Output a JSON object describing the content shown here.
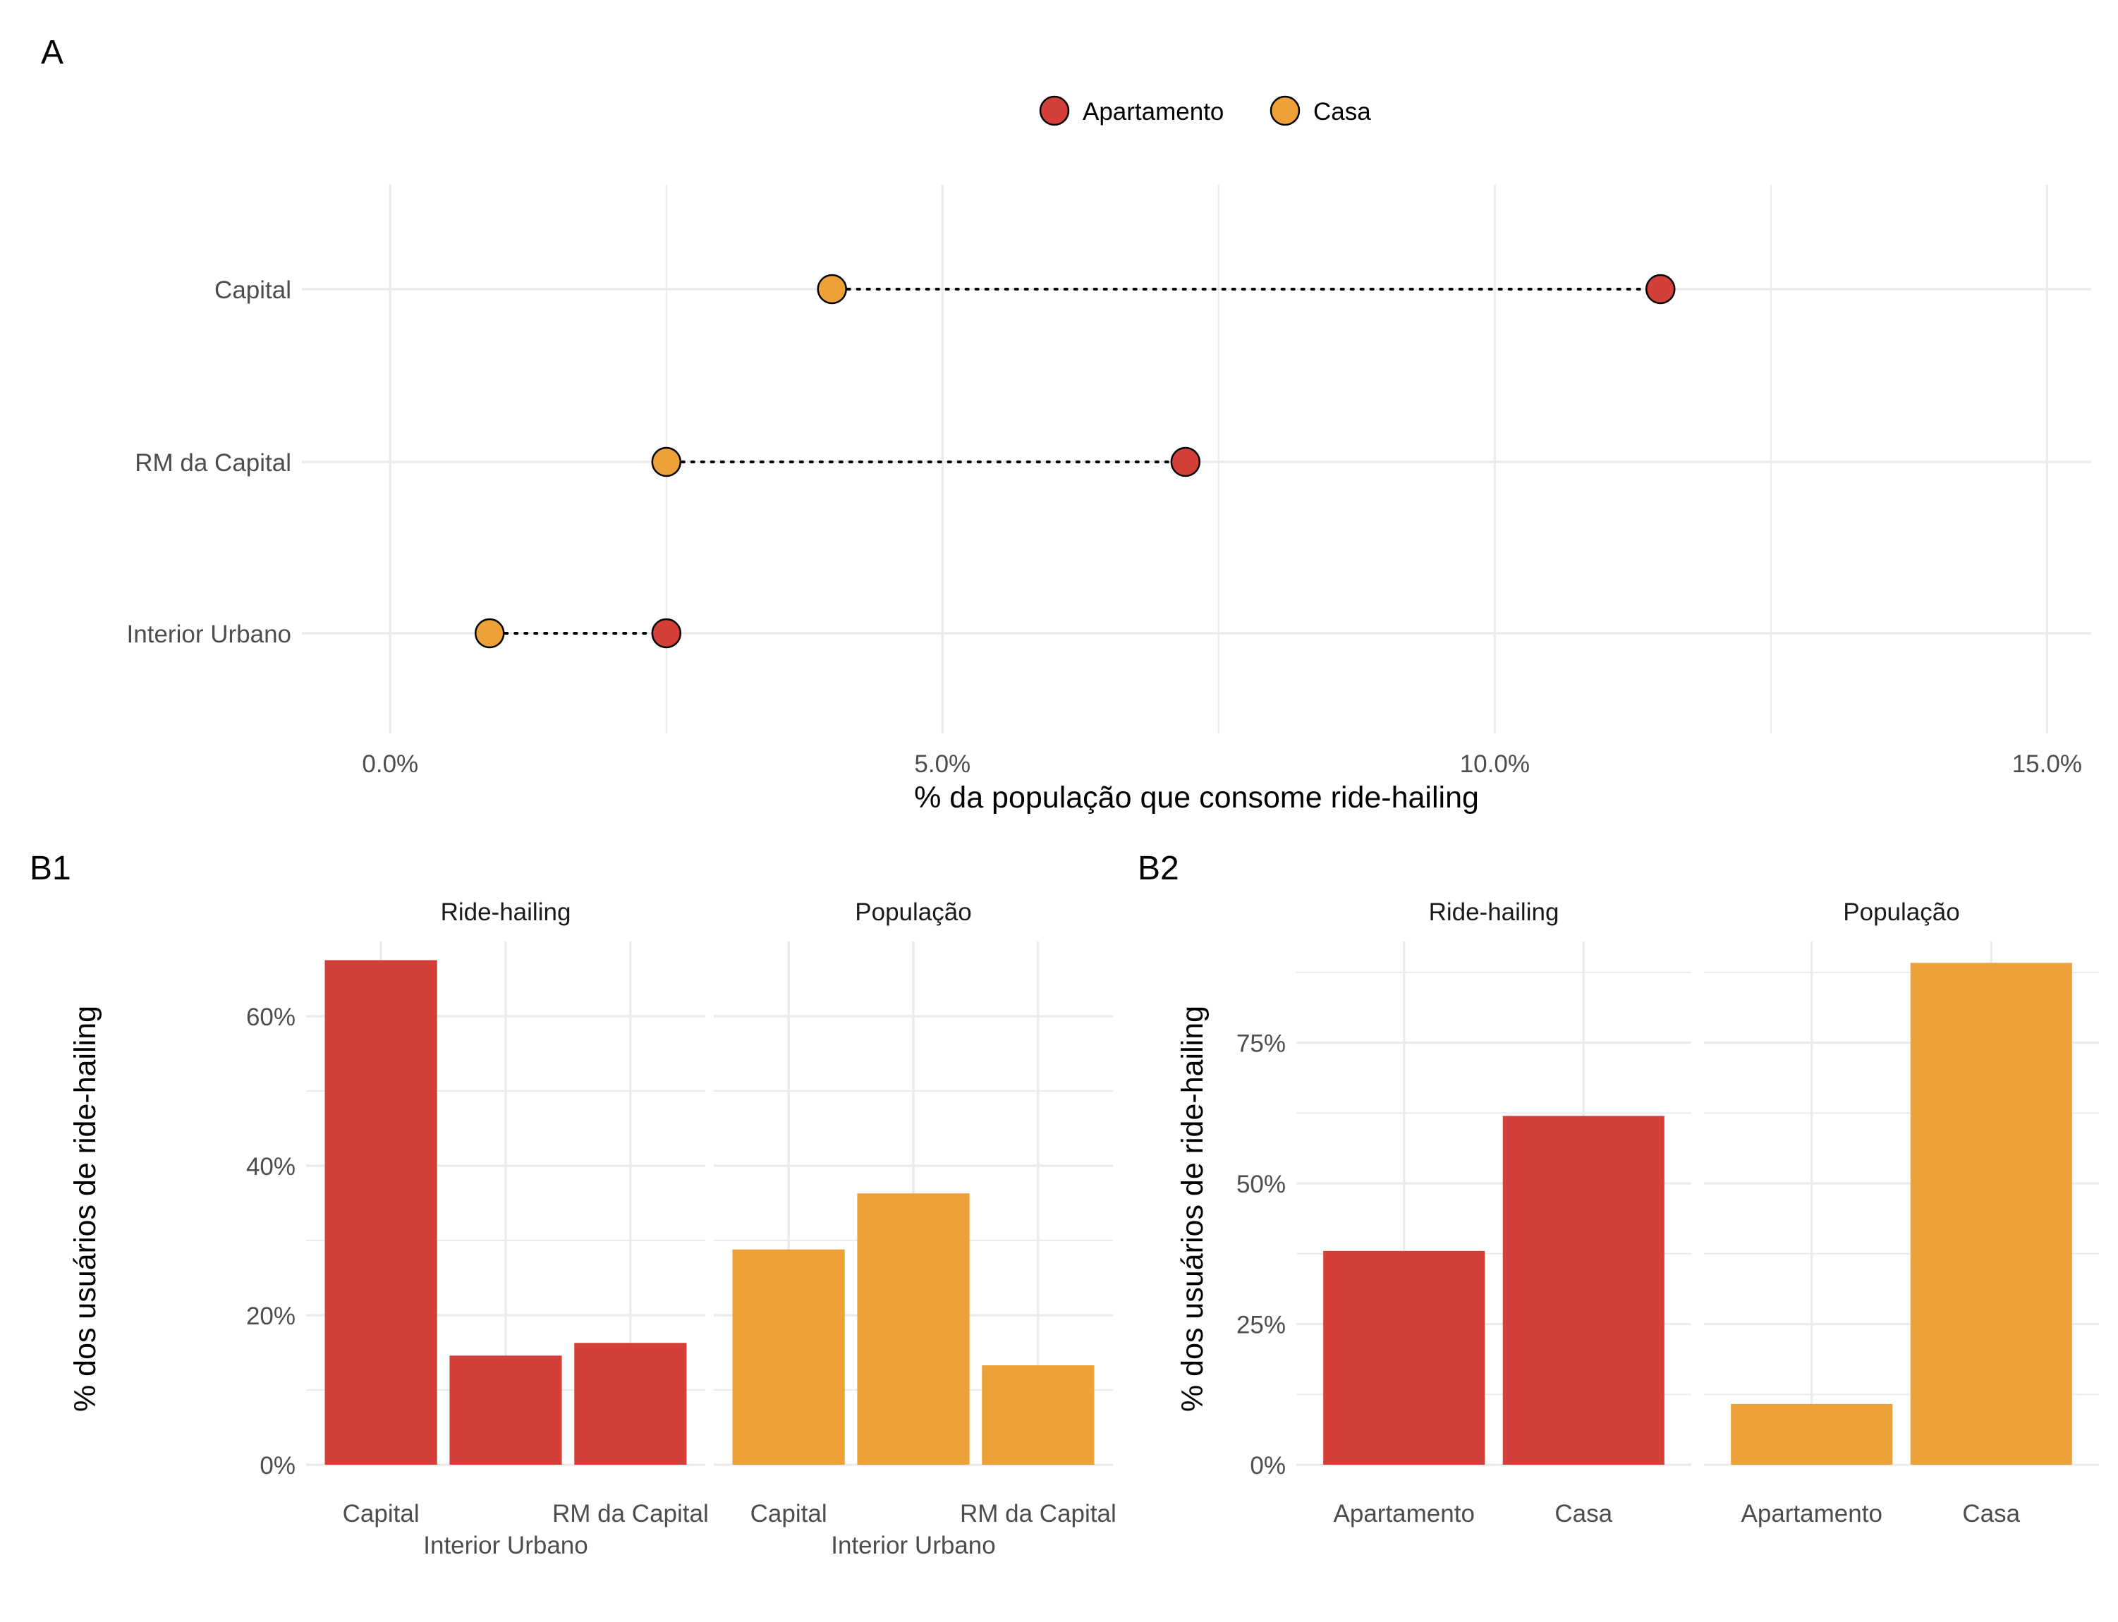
{
  "panel_labels": {
    "a": "A",
    "b1": "B1",
    "b2": "B2"
  },
  "colors": {
    "apartamento": "#d43f3a",
    "casa": "#eca238",
    "grid": "#ebebeb",
    "text": "#4d4d4d",
    "title": "#000000"
  },
  "chart_data": [
    {
      "id": "A",
      "type": "dumbbell",
      "legend": {
        "position": "top",
        "entries": [
          "Apartamento",
          "Casa"
        ]
      },
      "categories": [
        "Capital",
        "RM da Capital",
        "Interior Urbano"
      ],
      "series": [
        {
          "name": "Apartamento",
          "values": [
            11.5,
            7.2,
            2.5
          ]
        },
        {
          "name": "Casa",
          "values": [
            4.0,
            2.5,
            0.9
          ]
        }
      ],
      "xlabel": "% da população que consome ride-hailing",
      "xlim": [
        -0.8,
        15.4
      ],
      "xticks": [
        0,
        5,
        10,
        15
      ],
      "xtick_labels": [
        "0.0%",
        "5.0%",
        "10.0%",
        "15.0%"
      ],
      "grid": true
    },
    {
      "id": "B1",
      "type": "bar",
      "ylabel": "% dos usuários de ride-hailing",
      "ylim": [
        0,
        70
      ],
      "yticks": [
        0,
        20,
        40,
        60
      ],
      "ytick_labels": [
        "0%",
        "20%",
        "40%",
        "60%"
      ],
      "categories": [
        "Capital",
        "Interior Urbano",
        "RM da Capital"
      ],
      "facets": [
        {
          "title": "Ride-hailing",
          "values": [
            67.5,
            14.6,
            16.3
          ],
          "color_key": "apartamento"
        },
        {
          "title": "População",
          "values": [
            28.8,
            36.3,
            13.3
          ],
          "color_key": "casa"
        }
      ],
      "grid": true
    },
    {
      "id": "B2",
      "type": "bar",
      "ylabel": "% dos usuários de ride-hailing",
      "ylim": [
        0,
        93
      ],
      "yticks": [
        0,
        25,
        50,
        75
      ],
      "ytick_labels": [
        "0%",
        "25%",
        "50%",
        "75%"
      ],
      "categories": [
        "Apartamento",
        "Casa"
      ],
      "facets": [
        {
          "title": "Ride-hailing",
          "values": [
            38,
            62
          ],
          "color_key": "apartamento"
        },
        {
          "title": "População",
          "values": [
            10.8,
            89.2
          ],
          "color_key": "casa"
        }
      ],
      "grid": true
    }
  ]
}
